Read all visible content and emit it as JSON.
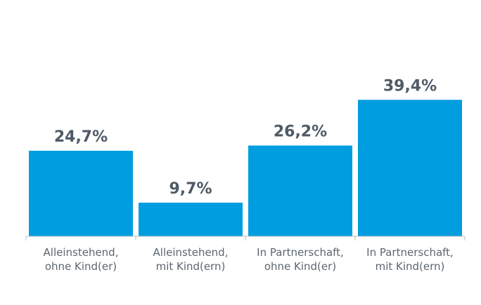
{
  "chart_data": {
    "type": "bar",
    "title": "",
    "xlabel": "",
    "ylabel": "",
    "ylim": [
      0,
      45
    ],
    "grid": false,
    "legend": "none",
    "bar_color": "#009de0",
    "label_color": "#4f5a66",
    "categories": [
      [
        "Alleinstehend,",
        "ohne Kind(er)"
      ],
      [
        "Alleinstehend,",
        "mit Kind(ern)"
      ],
      [
        "In Partnerschaft,",
        "ohne Kind(er)"
      ],
      [
        "In Partnerschaft,",
        "mit Kind(ern)"
      ]
    ],
    "values": [
      24.7,
      9.7,
      26.2,
      39.4
    ],
    "value_labels": [
      "24,7%",
      "9,7%",
      "26,2%",
      "39,4%"
    ]
  }
}
